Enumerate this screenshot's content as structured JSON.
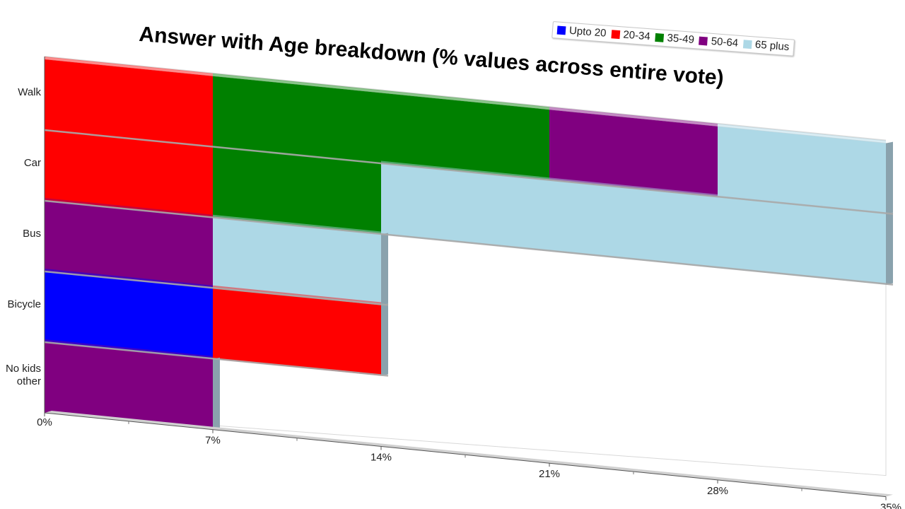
{
  "chart_data": {
    "type": "bar",
    "orientation": "horizontal",
    "stacked": true,
    "title": "Answer with Age breakdown (% values across entire vote)",
    "categories": [
      "Walk",
      "Car",
      "Bus",
      "Bicycle",
      "No kids other"
    ],
    "category_lines": [
      [
        "Walk"
      ],
      [
        "Car"
      ],
      [
        "Bus"
      ],
      [
        "Bicycle"
      ],
      [
        "No kids",
        "other"
      ]
    ],
    "series": [
      {
        "name": "Upto 20",
        "color": "#0000ff",
        "values": [
          0,
          0,
          0,
          7,
          0
        ]
      },
      {
        "name": "20-34",
        "color": "#ff0000",
        "values": [
          7,
          7,
          0,
          7,
          0
        ]
      },
      {
        "name": "35-49",
        "color": "#008000",
        "values": [
          14,
          7,
          0,
          0,
          0
        ]
      },
      {
        "name": "50-64",
        "color": "#800080",
        "values": [
          7,
          0,
          7,
          0,
          7
        ]
      },
      {
        "name": "65 plus",
        "color": "#add8e6",
        "values": [
          7,
          21,
          7,
          0,
          0
        ]
      }
    ],
    "x_ticks": [
      "0%",
      "7%",
      "14%",
      "21%",
      "28%",
      "35%"
    ],
    "xlim": [
      0,
      35
    ],
    "legend_position": "top-right",
    "grid": false
  }
}
